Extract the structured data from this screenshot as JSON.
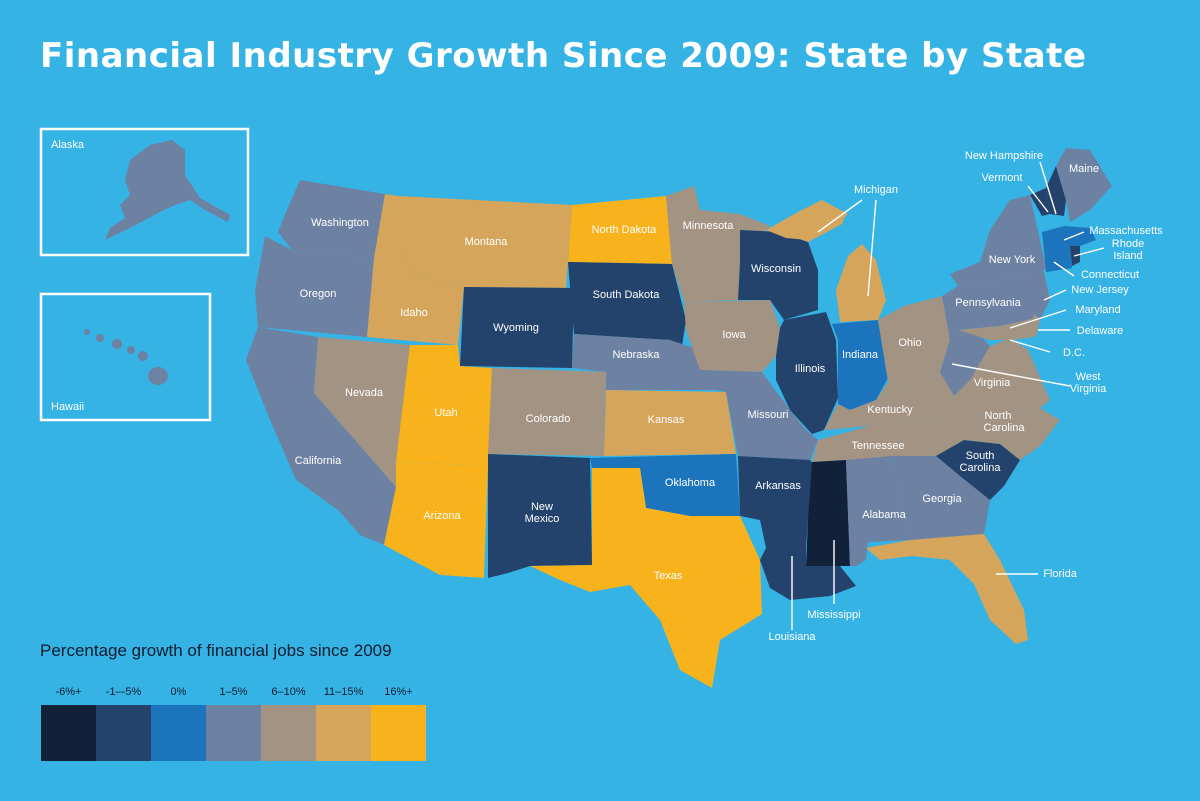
{
  "title": "Financial Industry Growth Since 2009: State by State",
  "insets": {
    "alaska": "Alaska",
    "hawaii": "Hawaii"
  },
  "legend": {
    "title": "Percentage growth of financial jobs since 2009",
    "bins": [
      {
        "label": "-6%+",
        "color": "#12213a"
      },
      {
        "label": "-1–-5%",
        "color": "#23436c"
      },
      {
        "label": "0%",
        "color": "#1c74bc"
      },
      {
        "label": "1–5%",
        "color": "#6d82a3"
      },
      {
        "label": "6–10%",
        "color": "#a39382"
      },
      {
        "label": "11–15%",
        "color": "#d5a55b"
      },
      {
        "label": "16%+",
        "color": "#f8b21b"
      }
    ]
  },
  "states": {
    "washington": "Washington",
    "oregon": "Oregon",
    "california": "California",
    "nevada": "Nevada",
    "idaho": "Idaho",
    "montana": "Montana",
    "wyoming": "Wyoming",
    "utah": "Utah",
    "arizona": "Arizona",
    "colorado": "Colorado",
    "new_mexico": "New Mexico",
    "north_dakota": "North Dakota",
    "south_dakota": "South Dakota",
    "nebraska": "Nebraska",
    "kansas": "Kansas",
    "oklahoma": "Oklahoma",
    "texas": "Texas",
    "minnesota": "Minnesota",
    "iowa": "Iowa",
    "missouri": "Missouri",
    "arkansas": "Arkansas",
    "louisiana": "Louisiana",
    "wisconsin": "Wisconsin",
    "illinois": "Illinois",
    "michigan": "Michigan",
    "indiana": "Indiana",
    "ohio": "Ohio",
    "kentucky": "Kentucky",
    "tennessee": "Tennessee",
    "mississippi": "Mississippi",
    "alabama": "Alabama",
    "georgia": "Georgia",
    "florida": "Florida",
    "south_carolina": "South Carolina",
    "north_carolina": "North Carolina",
    "virginia": "Virginia",
    "west_virginia": "West Virginia",
    "pennsylvania": "Pennsylvania",
    "new_york": "New York",
    "new_jersey": "New Jersey",
    "maryland": "Maryland",
    "delaware": "Delaware",
    "dc": "D.C.",
    "connecticut": "Connecticut",
    "rhode_island": "Rhode Island",
    "massachusetts": "Massachusetts",
    "vermont": "Vermont",
    "new_hampshire": "New Hampshire",
    "maine": "Maine"
  }
}
